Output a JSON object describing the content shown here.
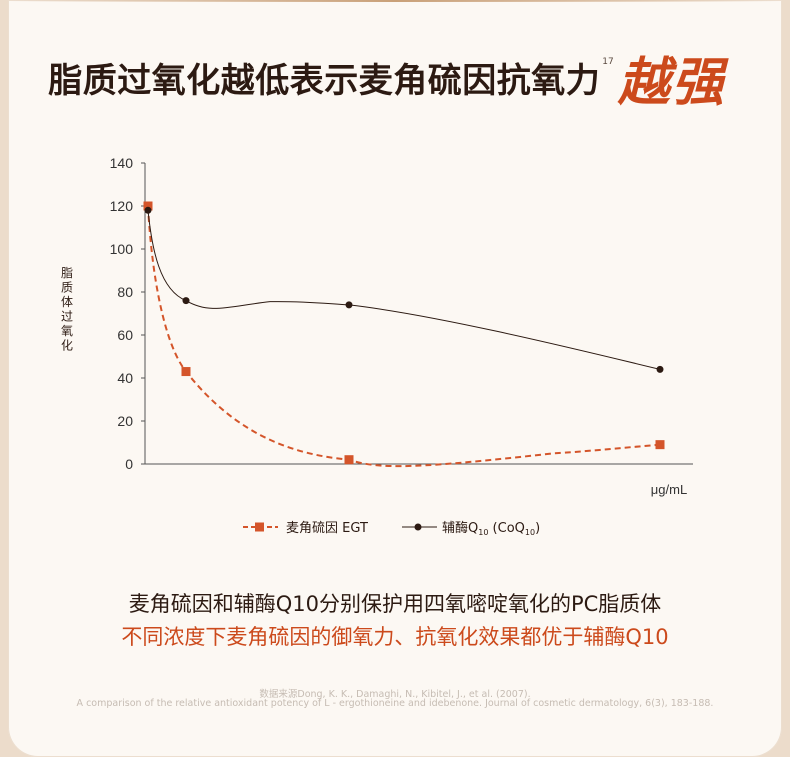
{
  "headline": {
    "main": "脂质过氧化越低表示麦角硫因抗氧力",
    "ref": "17",
    "accent": "越强"
  },
  "colors": {
    "accent": "#cc4a1c",
    "text_dark": "#2c1a12",
    "series_egt": "#d4552a",
    "series_coq10": "#2c1a12"
  },
  "chart_data": {
    "type": "line",
    "ylabel": "脂质体过氧化",
    "xlabel": "μg/mL",
    "ylim": [
      0,
      140
    ],
    "yticks": [
      "0",
      "20",
      "40",
      "60",
      "80",
      "100",
      "120",
      "140"
    ],
    "x_ticks_shown": false,
    "grid": false,
    "legend_position": "bottom-center",
    "series": [
      {
        "name": "麦角硫因 EGT",
        "style": "dashed",
        "marker": "square",
        "x": [
          0,
          1,
          5,
          14
        ],
        "values": [
          120,
          43,
          2,
          9
        ]
      },
      {
        "name": "辅酶Q10 (CoQ10)",
        "style": "solid",
        "marker": "circle",
        "x": [
          0,
          1,
          5,
          14
        ],
        "values": [
          118,
          76,
          74,
          44
        ]
      }
    ],
    "legend": [
      {
        "label_main": "麦角硫因 EGT",
        "label_sub": ""
      },
      {
        "label_main": "辅酶Q",
        "label_sub": "10",
        "label_paren_a": " (CoQ",
        "label_paren_sub": "10",
        "label_paren_b": ")"
      }
    ]
  },
  "captions": {
    "line1": "麦角硫因和辅酶Q10分别保护用四氧嘧啶氧化的PC脂质体",
    "line2": "不同浓度下麦角硫因的御氧力、抗氧化效果都优于辅酶Q10"
  },
  "source": {
    "line1": "数据来源Dong, K. K., Damaghi, N., Kibitel, J., et al. (2007).",
    "line2": "A comparison of the relative antioxidant potency of L - ergothioneine and idebenone. Journal of cosmetic dermatology, 6(3), 183-188."
  }
}
